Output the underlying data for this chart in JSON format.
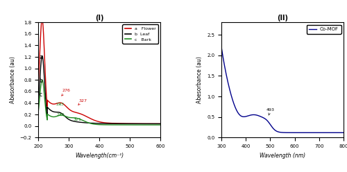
{
  "panel1": {
    "title": "(I)",
    "xlabel": "Wavelength(cm⁻¹)",
    "ylabel": "Abesorbance (au)",
    "xlim": [
      200,
      600
    ],
    "ylim": [
      -0.2,
      1.8
    ],
    "yticks": [
      -0.2,
      0.0,
      0.2,
      0.4,
      0.6,
      0.8,
      1.0,
      1.2,
      1.4,
      1.6,
      1.8
    ],
    "xticks": [
      200,
      300,
      400,
      500,
      600
    ],
    "flower_color": "#cc0000",
    "leaf_color": "#000000",
    "bark_color": "#228B22"
  },
  "panel2": {
    "title": "(II)",
    "xlabel": "Wavelength (nm)",
    "ylabel": "Abesorbance (au)",
    "xlim": [
      300,
      800
    ],
    "ylim": [
      0.0,
      2.8
    ],
    "yticks": [
      0.0,
      0.5,
      1.0,
      1.5,
      2.0,
      2.5
    ],
    "xticks": [
      300,
      400,
      500,
      600,
      700,
      800
    ],
    "line_color": "#00008B",
    "legend_label": "Co-MOF"
  }
}
